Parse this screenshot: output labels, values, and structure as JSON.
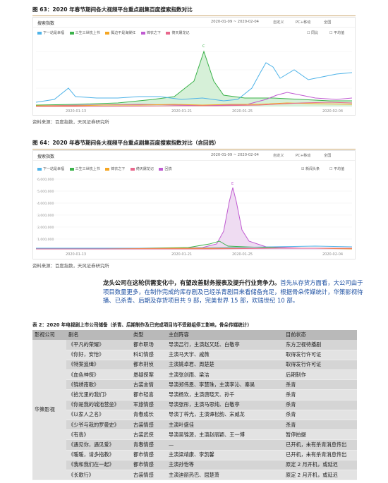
{
  "fig63": {
    "title": "图 63：2020 年春节期间各大视频平台重点剧集百度搜索指数对比",
    "tab": "搜索指数",
    "date_range": "2020-01-09 ~ 2020-02-04",
    "custom": "自定义",
    "device": "PC+移动",
    "region": "全国",
    "check1": "同比",
    "check2": "平均值",
    "legend": [
      {
        "label": "下一站是幸福",
        "color": "#4fb3e8"
      },
      {
        "label": "三生三世枕上书",
        "color": "#3bb24a"
      },
      {
        "label": "鬓边不是海棠红",
        "color": "#f5a623"
      },
      {
        "label": "锦衣之下",
        "color": "#c05bd1"
      },
      {
        "label": "倚天屠龙记",
        "color": "#e8678c"
      }
    ],
    "source": "资料来源：百度指数，天风证券研究所"
  },
  "fig64": {
    "title": "图 64：2020 年春节期间各大视频平台重点剧集百度搜索指数对比（含回鸽）",
    "tab": "搜索指数",
    "date_range": "2020-01-09 ~ 2020-02-04",
    "custom": "自定义",
    "device": "PC+移动",
    "region": "全国",
    "check1": "新闻头条",
    "check2": "平均值",
    "legend": [
      {
        "label": "下一站是幸福",
        "color": "#4fb3e8"
      },
      {
        "label": "三生三世枕上书",
        "color": "#3bb24a"
      },
      {
        "label": "锦衣之下",
        "color": "#f5a623"
      },
      {
        "label": "倚天屠龙记",
        "color": "#e8678c"
      },
      {
        "label": "回鸽",
        "color": "#c05bd1"
      }
    ],
    "yticks": [
      "6,000,000",
      "5,000,000",
      "4,000,000",
      "3,000,000",
      "2,000,000",
      "1,000,000"
    ],
    "source": "资料来源：百度指数，天风证券研究所"
  },
  "paragraph": {
    "bold": "龙头公司在这轮供需变化中，有望改善财务报表及提升行业竞争力。",
    "rest": "首先从存货方面看，大公司由于项目数量更多，在制作完成的库存剧及已经杀青剧目来看储备充足，根据骨朵传媒统计，华策影视待播、已杀青、后期及存货项目共 9 部，完美世界 15 部，欢瑞世纪 10 部。"
  },
  "table": {
    "title": "表 2：2020 年电视剧上市公司储备（杀青、后期制作及已完成项目均不受剧组停工影响，骨朵传媒统计）",
    "headers": [
      "影视公司",
      "剧名",
      "类型",
      "主创阵容",
      "目前状态"
    ],
    "company": "华策影视",
    "rows": [
      [
        "《平凡的荣耀》",
        "都市职场",
        "导演吕行，主演赵又廷、白敬亭",
        "东方卫视待播剧"
      ],
      [
        "《你好，安怡》",
        "科幻情感",
        "主演马天宇、戚薇",
        "取得发行许可证"
      ],
      [
        "《特案追缉》",
        "都市刑侦",
        "主演姚卓君、周楚楚",
        "取得发行许可证"
      ],
      [
        "《血色神探》",
        "悬疑探案",
        "主演张剑雨、梁洁",
        "后期制作"
      ],
      [
        "《锦绣南歌》",
        "古装言情",
        "导演郑伟恩、李慧珠，主演李沁、秦昊",
        "杀青"
      ],
      [
        "《拾光里的我们》",
        "都市轻喜",
        "导演杨欢，主演唐晓天、孙千",
        "杀青"
      ],
      [
        "《你是我的城池营垒》",
        "军旅情感",
        "导演张彤，主演马思纯、白敬亭",
        "杀青"
      ],
      [
        "《以家人之名》",
        "青春成长",
        "导演丁梓光，主演谭松韵、宋威龙",
        "杀青"
      ],
      [
        "《少爷与我的罗曼史》",
        "古装情感",
        "主演叶盛佳",
        "杀青"
      ],
      [
        "《有翡》",
        "古装武侠",
        "导演吴锦源，主演赵丽颖、王一博",
        "暂停拍摄"
      ],
      [
        "《遇见你，遇见爱》",
        "青春情感",
        "—",
        "已开机，未有杀青消息传出"
      ],
      [
        "《暖暖，请多指教》",
        "都市情感",
        "主演梁靖康、李凯馨",
        "已开机，未有杀青消息传出"
      ],
      [
        "《我和我们在一起》",
        "都市情感",
        "主演孙怡等",
        "原定 2 月开机，或延迟"
      ],
      [
        "《长歌行》",
        "古装情感",
        "主演迪丽热巴、屈楚萧",
        "原定 2 月开机，或延迟"
      ]
    ]
  }
}
